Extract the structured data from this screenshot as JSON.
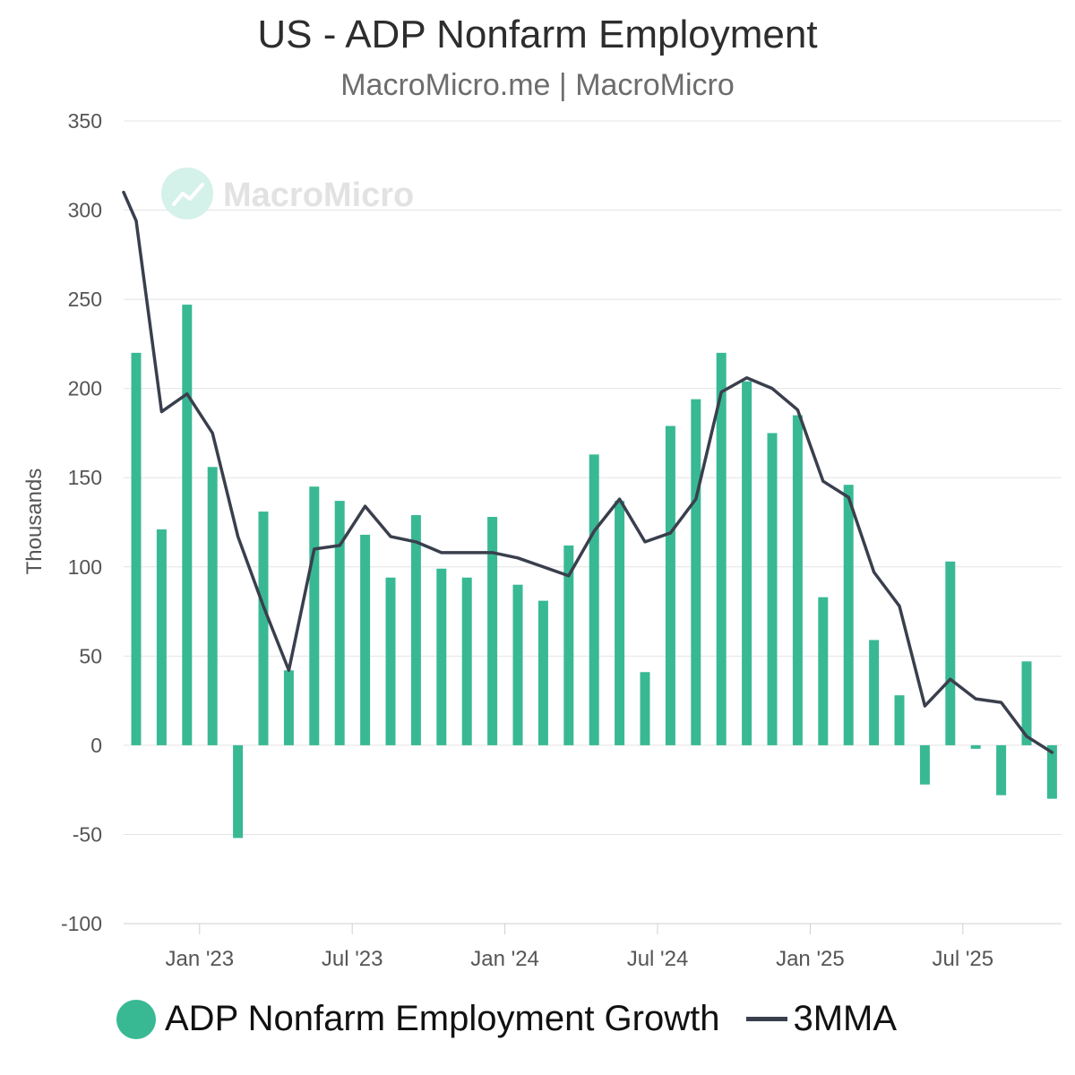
{
  "header": {
    "title": "US - ADP Nonfarm Employment",
    "subtitle": "MacroMicro.me | MacroMicro",
    "watermark": "MacroMicro"
  },
  "legend": {
    "bar_label": "ADP Nonfarm Employment Growth",
    "line_label": "3MMA"
  },
  "colors": {
    "bar": "#38b994",
    "line": "#3a3f4d",
    "grid": "#e4e4e4",
    "watermark": "#d4f1ea"
  },
  "chart_data": {
    "type": "bar",
    "title": "US - ADP Nonfarm Employment",
    "subtitle": "MacroMicro.me | MacroMicro",
    "ylabel": "Thousands",
    "xlabel": "",
    "ylim": [
      -100,
      350
    ],
    "yticks": [
      350,
      300,
      250,
      200,
      150,
      100,
      50,
      0,
      -50,
      -100
    ],
    "xticks": [
      {
        "label": "Jan '23",
        "index": 2
      },
      {
        "label": "Jul '23",
        "index": 8
      },
      {
        "label": "Jan '24",
        "index": 14
      },
      {
        "label": "Jul '24",
        "index": 20
      },
      {
        "label": "Jan '25",
        "index": 26
      },
      {
        "label": "Jul '25",
        "index": 32
      }
    ],
    "categories": [
      "Nov '22",
      "Dec '22",
      "Jan '23",
      "Feb '23",
      "Mar '23",
      "Apr '23",
      "May '23",
      "Jun '23",
      "Jul '23",
      "Aug '23",
      "Sep '23",
      "Oct '23",
      "Nov '23",
      "Dec '23",
      "Jan '24",
      "Feb '24",
      "Mar '24",
      "Apr '24",
      "May '24",
      "Jun '24",
      "Jul '24",
      "Aug '24",
      "Sep '24",
      "Oct '24",
      "Nov '24",
      "Dec '24",
      "Jan '25",
      "Feb '25",
      "Mar '25",
      "Apr '25",
      "May '25",
      "Jun '25",
      "Jul '25",
      "Aug '25",
      "Sep '25",
      "Oct '25",
      "Nov '25"
    ],
    "series": [
      {
        "name": "ADP Nonfarm Employment Growth",
        "kind": "bar",
        "values": [
          220,
          121,
          247,
          156,
          -52,
          131,
          42,
          145,
          137,
          118,
          94,
          129,
          99,
          94,
          128,
          90,
          81,
          112,
          163,
          137,
          41,
          179,
          194,
          220,
          204,
          175,
          185,
          83,
          146,
          59,
          28,
          -22,
          103,
          -2,
          -28,
          47,
          -30
        ]
      },
      {
        "name": "3MMA",
        "kind": "line",
        "values": [
          294,
          187,
          197,
          175,
          117,
          78,
          42,
          110,
          112,
          134,
          117,
          114,
          108,
          108,
          108,
          105,
          100,
          95,
          120,
          138,
          114,
          119,
          138,
          198,
          206,
          200,
          188,
          148,
          139,
          97,
          78,
          22,
          37,
          26,
          24,
          5,
          -4
        ],
        "start_value": 310
      }
    ]
  }
}
